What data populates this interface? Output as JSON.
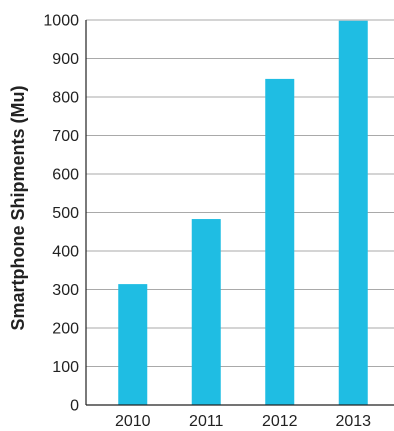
{
  "chart_data": {
    "type": "bar",
    "title": "",
    "xlabel": "",
    "ylabel": "Smartphone Shipments (Mu)",
    "categories": [
      "2010",
      "2011",
      "2012",
      "2013"
    ],
    "values": [
      314,
      483,
      847,
      998
    ],
    "ylim": [
      0,
      1000
    ],
    "yticks": [
      0,
      100,
      200,
      300,
      400,
      500,
      600,
      700,
      800,
      900,
      1000
    ],
    "grid": true,
    "legend": "none",
    "bar_color": "#1fbde3",
    "grid_color": "#a9a9a9"
  }
}
